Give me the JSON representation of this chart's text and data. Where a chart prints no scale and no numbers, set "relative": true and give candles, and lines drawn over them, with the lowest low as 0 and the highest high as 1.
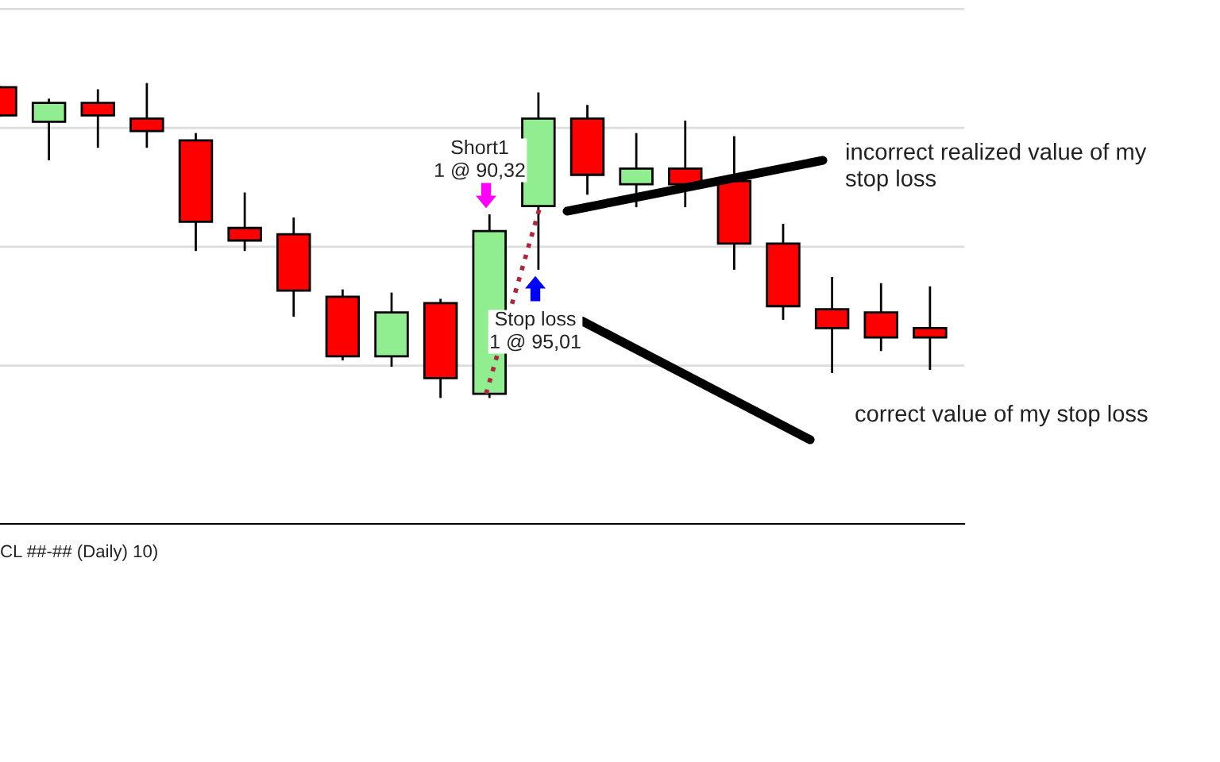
{
  "chart_data": {
    "type": "candlestick",
    "relative": true,
    "grid": true,
    "categories": [
      null,
      null,
      null,
      null,
      null,
      null,
      null,
      null,
      null,
      null,
      null,
      null,
      null,
      null,
      null,
      null,
      null,
      null,
      null,
      null
    ],
    "ohlc": [
      [
        0.99,
        0.99,
        0.9,
        0.9
      ],
      [
        0.88,
        0.95,
        0.76,
        0.94
      ],
      [
        0.94,
        0.98,
        0.8,
        0.9
      ],
      [
        0.89,
        1.0,
        0.8,
        0.85
      ],
      [
        0.82,
        0.84,
        0.47,
        0.56
      ],
      [
        0.54,
        0.65,
        0.47,
        0.5
      ],
      [
        0.52,
        0.57,
        0.26,
        0.34
      ],
      [
        0.32,
        0.34,
        0.12,
        0.13
      ],
      [
        0.13,
        0.33,
        0.1,
        0.27
      ],
      [
        0.3,
        0.31,
        0.0,
        0.06
      ],
      [
        0.01,
        0.58,
        0.0,
        0.53
      ],
      [
        0.61,
        0.97,
        0.41,
        0.89
      ],
      [
        0.89,
        0.93,
        0.65,
        0.71
      ],
      [
        0.68,
        0.84,
        0.61,
        0.73
      ],
      [
        0.73,
        0.88,
        0.61,
        0.68
      ],
      [
        0.69,
        0.83,
        0.41,
        0.49
      ],
      [
        0.49,
        0.55,
        0.25,
        0.29
      ],
      [
        0.28,
        0.38,
        0.08,
        0.22
      ],
      [
        0.27,
        0.36,
        0.15,
        0.19
      ],
      [
        0.22,
        0.35,
        0.09,
        0.19
      ]
    ],
    "colors": [
      "#ff0000",
      "#90ee90",
      "#ff0000",
      "#ff0000",
      "#ff0000",
      "#ff0000",
      "#ff0000",
      "#ff0000",
      "#90ee90",
      "#ff0000",
      "#90ee90",
      "#90ee90",
      "#ff0000",
      "#90ee90",
      "#ff0000",
      "#ff0000",
      "#ff0000",
      "#ff0000",
      "#ff0000",
      "#ff0000"
    ],
    "annotations": [
      "Short1\n1 @ 90,32",
      "Stop loss\n1 @ 95,01",
      "incorrect realized value of my\nstop loss",
      "correct value of my stop loss",
      "CL ##-## (Daily) 10)"
    ]
  }
}
